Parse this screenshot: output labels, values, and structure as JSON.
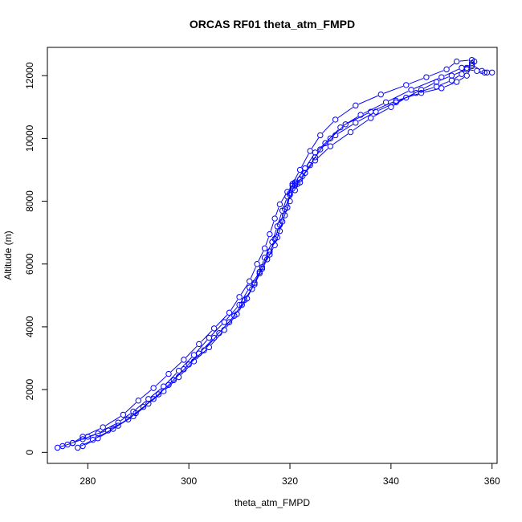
{
  "chart_data": {
    "type": "line",
    "title": "ORCAS RF01 theta_atm_FMPD",
    "xlabel": "theta_atm_FMPD",
    "ylabel": "Altitude (m)",
    "xlim": [
      272,
      361
    ],
    "ylim": [
      -350,
      12900
    ],
    "xticks": [
      280,
      300,
      320,
      340,
      360
    ],
    "yticks": [
      0,
      2000,
      4000,
      6000,
      8000,
      10000,
      12000
    ],
    "grid": false,
    "legend": "none",
    "marker": "open-circle",
    "color": "#0000ff",
    "series": [
      {
        "values": [
          [
            274,
            150
          ],
          [
            276,
            250
          ],
          [
            279,
            420
          ],
          [
            282,
            600
          ],
          [
            286,
            950
          ],
          [
            289,
            1300
          ],
          [
            292,
            1700
          ],
          [
            295,
            2100
          ],
          [
            298,
            2600
          ],
          [
            301,
            3100
          ],
          [
            304,
            3650
          ],
          [
            307,
            4150
          ],
          [
            310,
            4700
          ],
          [
            312,
            5250
          ],
          [
            314,
            5750
          ],
          [
            315,
            6200
          ],
          [
            316.5,
            6700
          ],
          [
            317.5,
            7200
          ],
          [
            318.5,
            7700
          ],
          [
            319.5,
            8150
          ],
          [
            320.5,
            8550
          ],
          [
            322,
            9000
          ],
          [
            324,
            9600
          ],
          [
            326,
            10100
          ],
          [
            329,
            10600
          ],
          [
            333,
            11050
          ],
          [
            338,
            11400
          ],
          [
            343,
            11700
          ],
          [
            347,
            11950
          ],
          [
            351,
            12200
          ],
          [
            353,
            12450
          ],
          [
            356,
            12500
          ]
        ]
      },
      {
        "values": [
          [
            275,
            200
          ],
          [
            277,
            300
          ],
          [
            280,
            500
          ],
          [
            284,
            700
          ],
          [
            288,
            1050
          ],
          [
            291,
            1450
          ],
          [
            294,
            1850
          ],
          [
            297,
            2300
          ],
          [
            300,
            2800
          ],
          [
            303,
            3250
          ],
          [
            306,
            3800
          ],
          [
            309,
            4350
          ],
          [
            311,
            4850
          ],
          [
            313,
            5350
          ],
          [
            314.5,
            5850
          ],
          [
            316,
            6300
          ],
          [
            317,
            6800
          ],
          [
            318,
            7250
          ],
          [
            319,
            7750
          ],
          [
            320,
            8200
          ],
          [
            321,
            8500
          ],
          [
            322,
            8600
          ],
          [
            323,
            8900
          ],
          [
            325,
            9400
          ],
          [
            327,
            9850
          ],
          [
            330,
            10350
          ],
          [
            334,
            10750
          ],
          [
            339,
            11150
          ],
          [
            344,
            11550
          ],
          [
            350,
            11950
          ],
          [
            354,
            12250
          ],
          [
            356,
            12350
          ],
          [
            358,
            12150
          ],
          [
            359,
            12100
          ],
          [
            360,
            12100
          ]
        ]
      },
      {
        "values": [
          [
            277,
            300
          ],
          [
            279,
            500
          ],
          [
            283,
            800
          ],
          [
            287,
            1200
          ],
          [
            290,
            1650
          ],
          [
            293,
            2050
          ],
          [
            296,
            2500
          ],
          [
            299,
            2950
          ],
          [
            302,
            3450
          ],
          [
            305,
            3950
          ],
          [
            308,
            4450
          ],
          [
            310,
            4950
          ],
          [
            312,
            5450
          ],
          [
            313.5,
            6000
          ],
          [
            315,
            6500
          ],
          [
            316,
            6950
          ],
          [
            317,
            7450
          ],
          [
            318,
            7900
          ],
          [
            319.5,
            8300
          ],
          [
            321,
            8600
          ],
          [
            323,
            9050
          ],
          [
            325,
            9550
          ],
          [
            328,
            10000
          ],
          [
            331,
            10450
          ],
          [
            336,
            10850
          ],
          [
            341,
            11200
          ],
          [
            346,
            11450
          ],
          [
            350,
            11600
          ],
          [
            353,
            11800
          ],
          [
            355,
            12000
          ],
          [
            356,
            12300
          ],
          [
            356.5,
            12450
          ]
        ]
      },
      {
        "values": [
          [
            278,
            150
          ],
          [
            281,
            400
          ],
          [
            285,
            750
          ],
          [
            289,
            1150
          ],
          [
            292,
            1550
          ],
          [
            295,
            1950
          ],
          [
            298,
            2400
          ],
          [
            301,
            2900
          ],
          [
            304,
            3350
          ],
          [
            307,
            3900
          ],
          [
            309.5,
            4400
          ],
          [
            311.5,
            4900
          ],
          [
            313,
            5400
          ],
          [
            314.5,
            5900
          ],
          [
            316,
            6400
          ],
          [
            317.5,
            6850
          ],
          [
            318.5,
            7350
          ],
          [
            319.5,
            7800
          ],
          [
            320,
            8250
          ],
          [
            320.5,
            8500
          ],
          [
            321,
            8350
          ],
          [
            322,
            8700
          ],
          [
            324,
            9150
          ],
          [
            326,
            9650
          ],
          [
            329,
            10100
          ],
          [
            333,
            10500
          ],
          [
            337,
            10850
          ],
          [
            341,
            11150
          ],
          [
            345,
            11450
          ],
          [
            349,
            11650
          ],
          [
            352,
            11850
          ],
          [
            354,
            12050
          ],
          [
            355,
            12250
          ],
          [
            356,
            12400
          ]
        ]
      },
      {
        "values": [
          [
            279,
            200
          ],
          [
            282,
            450
          ],
          [
            286,
            850
          ],
          [
            289.5,
            1250
          ],
          [
            293,
            1700
          ],
          [
            296,
            2150
          ],
          [
            299,
            2650
          ],
          [
            302,
            3150
          ],
          [
            305,
            3650
          ],
          [
            308,
            4150
          ],
          [
            310.5,
            4700
          ],
          [
            312.5,
            5200
          ],
          [
            314,
            5700
          ],
          [
            315.5,
            6150
          ],
          [
            317,
            6600
          ],
          [
            318,
            7050
          ],
          [
            319,
            7550
          ],
          [
            320,
            8000
          ],
          [
            320.5,
            8400
          ],
          [
            321,
            8550
          ],
          [
            321.5,
            8550
          ],
          [
            322.5,
            8800
          ],
          [
            325,
            9300
          ],
          [
            328,
            9750
          ],
          [
            332,
            10200
          ],
          [
            336,
            10650
          ],
          [
            340,
            11000
          ],
          [
            343,
            11300
          ],
          [
            346,
            11550
          ],
          [
            349,
            11800
          ],
          [
            352,
            12000
          ],
          [
            355,
            12200
          ],
          [
            357,
            12150
          ],
          [
            358.5,
            12100
          ]
        ]
      }
    ]
  }
}
